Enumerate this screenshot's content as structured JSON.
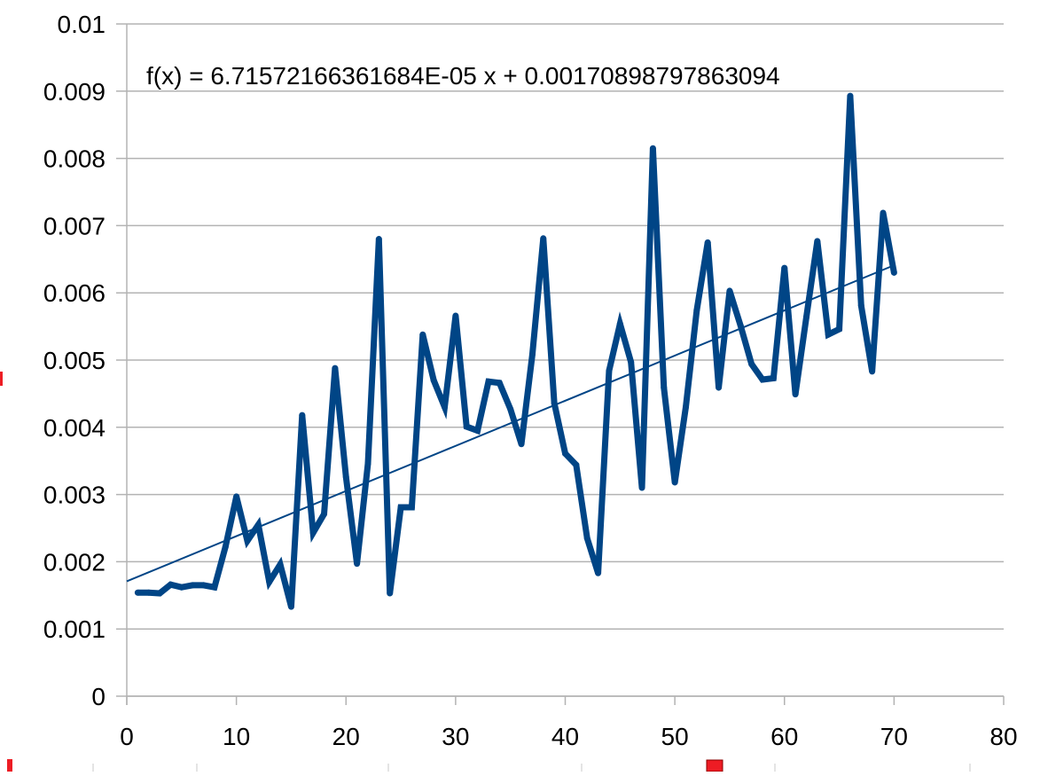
{
  "chart_data": {
    "type": "line",
    "title": "",
    "xlabel": "",
    "ylabel": "",
    "xlim": [
      0,
      80
    ],
    "ylim": [
      0,
      0.01
    ],
    "x_ticks": [
      0,
      10,
      20,
      30,
      40,
      50,
      60,
      70,
      80
    ],
    "x_tick_labels": [
      "0",
      "10",
      "20",
      "30",
      "40",
      "50",
      "60",
      "70",
      "80"
    ],
    "y_ticks": [
      0,
      0.001,
      0.002,
      0.003,
      0.004,
      0.005,
      0.006,
      0.007,
      0.008,
      0.009,
      0.01
    ],
    "y_tick_labels": [
      "0",
      "0.001",
      "0.002",
      "0.003",
      "0.004",
      "0.005",
      "0.006",
      "0.007",
      "0.008",
      "0.009",
      "0.01"
    ],
    "grid": "horizontal",
    "legend": "none",
    "series": [
      {
        "color": "#004586",
        "x": [
          1,
          2,
          3,
          4,
          5,
          6,
          7,
          8,
          9,
          10,
          11,
          12,
          13,
          14,
          15,
          16,
          17,
          18,
          19,
          20,
          21,
          22,
          23,
          24,
          25,
          26,
          27,
          28,
          29,
          30,
          31,
          32,
          33,
          34,
          35,
          36,
          37,
          38,
          39,
          40,
          41,
          42,
          43,
          44,
          45,
          46,
          47,
          48,
          49,
          50,
          51,
          52,
          53,
          54,
          55,
          56,
          57,
          58,
          59,
          60,
          61,
          62,
          63,
          64,
          65,
          66,
          67,
          68,
          69,
          70
        ],
        "values": [
          0.00154,
          0.00154,
          0.00153,
          0.00166,
          0.00162,
          0.00165,
          0.00165,
          0.00162,
          0.00222,
          0.00297,
          0.00231,
          0.00255,
          0.0017,
          0.00196,
          0.00133,
          0.00418,
          0.00243,
          0.00271,
          0.00488,
          0.00326,
          0.00197,
          0.00346,
          0.0068,
          0.00153,
          0.00281,
          0.00281,
          0.00538,
          0.0047,
          0.0043,
          0.00566,
          0.00401,
          0.00395,
          0.00468,
          0.00466,
          0.00427,
          0.00375,
          0.00508,
          0.00681,
          0.00436,
          0.00361,
          0.00344,
          0.00235,
          0.00183,
          0.00484,
          0.00554,
          0.00497,
          0.0031,
          0.00815,
          0.00459,
          0.00318,
          0.0043,
          0.00574,
          0.00675,
          0.00459,
          0.00603,
          0.00551,
          0.00494,
          0.00471,
          0.00473,
          0.00637,
          0.00449,
          0.00564,
          0.00677,
          0.00538,
          0.00546,
          0.00893,
          0.00581,
          0.00483,
          0.00719,
          0.0063
        ]
      }
    ],
    "trendline": {
      "type": "linear",
      "slope": 6.71572166361684e-05,
      "intercept": 0.00170898797863094,
      "x_range": [
        0,
        70
      ],
      "color": "#004586",
      "equation": "f(x) = 6.71572166361684E-05 x + 0.00170898797863094"
    }
  }
}
